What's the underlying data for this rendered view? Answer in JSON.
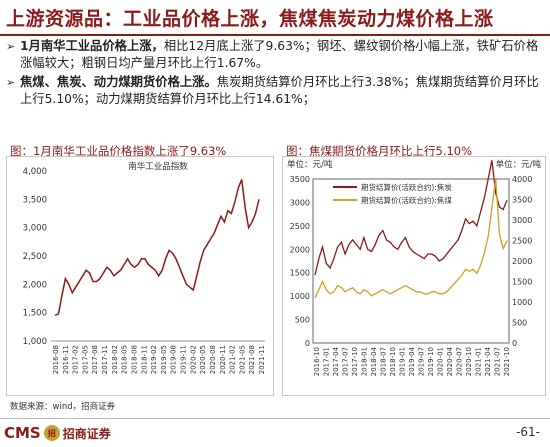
{
  "header": {
    "title": "上游资源品：工业品价格上涨，焦煤焦炭动力煤价格上涨"
  },
  "bullets": [
    {
      "bold": "1月南华工业品价格上涨，",
      "rest": "相比12月底上涨了9.63%；钢坯、螺纹钢价格小幅上涨，铁矿石价格涨幅较大；粗钢日均产量月环比上行1.67%。"
    },
    {
      "bold": "焦煤、焦炭、动力煤期货价格上涨。",
      "rest": "焦炭期货结算价月环比上行3.38%；焦煤期货结算价月环比上行5.10%；动力煤期货结算价月环比上行14.61%；"
    }
  ],
  "footer": {
    "source": "数据来源：wind，招商证券",
    "logo_cms": "CMS",
    "logo_badge": "招",
    "logo_name": "招商证券",
    "page": "-61-"
  },
  "colors": {
    "brand": "#8b1a1a",
    "line1": "#8b1a1a",
    "line2": "#c9a227"
  },
  "chart_data": [
    {
      "type": "line",
      "panel_title": "图：1月南华工业品价格指数上涨了9.63%",
      "title": "南华工业品指数",
      "ylim": [
        1000,
        4000
      ],
      "yticks": [
        "1,000",
        "1,500",
        "2,000",
        "2,500",
        "3,000",
        "3,500",
        "4,000"
      ],
      "xticks": [
        "2016-08",
        "2016-11",
        "2017-02",
        "2017-05",
        "2017-08",
        "2017-11",
        "2018-02",
        "2018-05",
        "2018-08",
        "2018-11",
        "2019-02",
        "2019-05",
        "2019-08",
        "2019-11",
        "2020-02",
        "2020-05",
        "2020-08",
        "2020-11",
        "2021-02",
        "2021-05",
        "2021-08",
        "2021-11"
      ],
      "series": [
        {
          "values": [
            1450,
            1480,
            1800,
            2100,
            2000,
            1850,
            1950,
            2050,
            2150,
            2250,
            2200,
            2050,
            2050,
            2100,
            2200,
            2300,
            2250,
            2150,
            2200,
            2250,
            2350,
            2450,
            2350,
            2300,
            2350,
            2450,
            2450,
            2350,
            2300,
            2250,
            2150,
            2250,
            2450,
            2600,
            2550,
            2450,
            2300,
            2150,
            2000,
            1950,
            1900,
            2150,
            2400,
            2600,
            2700,
            2800,
            2900,
            3050,
            3200,
            3100,
            3300,
            3250,
            3450,
            3700,
            3850,
            3350,
            3000,
            3100,
            3250,
            3500
          ]
        }
      ]
    },
    {
      "type": "line",
      "panel_title": "图：焦煤期货价格月环比上行5.10%",
      "unit_left": "单位：元/吨",
      "unit_right": "单位：元/吨",
      "ylim_left": [
        0,
        3500
      ],
      "ylim_right": [
        0,
        4000
      ],
      "yticks_left": [
        "0",
        "500",
        "1000",
        "1500",
        "2000",
        "2500",
        "3000",
        "3500"
      ],
      "yticks_right": [
        "0",
        "500",
        "1000",
        "1500",
        "2000",
        "2500",
        "3000",
        "3500",
        "4000"
      ],
      "xticks": [
        "2016-10",
        "2017-01",
        "2017-04",
        "2017-07",
        "2017-10",
        "2018-01",
        "2018-04",
        "2018-07",
        "2018-10",
        "2019-01",
        "2019-04",
        "2019-07",
        "2019-10",
        "2020-01",
        "2020-04",
        "2020-07",
        "2020-10",
        "2021-01",
        "2021-04",
        "2021-07",
        "2021-10"
      ],
      "series": [
        {
          "name": "期货结算价(活跃合约):焦炭",
          "axis": "left",
          "values": [
            1450,
            1800,
            2050,
            1700,
            1600,
            1800,
            2050,
            2150,
            1900,
            2100,
            2200,
            2100,
            2000,
            2250,
            2000,
            1950,
            2100,
            2300,
            2400,
            2200,
            2150,
            2050,
            2000,
            2150,
            2250,
            2050,
            1950,
            1900,
            1850,
            1800,
            1900,
            1900,
            1850,
            1750,
            1800,
            1900,
            2000,
            2100,
            2200,
            2400,
            2650,
            2550,
            2600,
            2500,
            2800,
            3100,
            3500,
            3900,
            3200,
            2900,
            2850,
            3050
          ]
        },
        {
          "name": "期货结算价(活跃合约):焦煤",
          "axis": "right",
          "values": [
            1100,
            1300,
            1500,
            1300,
            1200,
            1250,
            1400,
            1350,
            1250,
            1300,
            1350,
            1250,
            1200,
            1300,
            1250,
            1150,
            1200,
            1250,
            1300,
            1250,
            1200,
            1250,
            1300,
            1350,
            1400,
            1350,
            1300,
            1250,
            1250,
            1200,
            1200,
            1250,
            1250,
            1200,
            1200,
            1250,
            1350,
            1450,
            1550,
            1650,
            1800,
            1750,
            1800,
            1700,
            1900,
            2200,
            2600,
            3300,
            4000,
            2650,
            2300,
            2500
          ]
        }
      ]
    }
  ]
}
